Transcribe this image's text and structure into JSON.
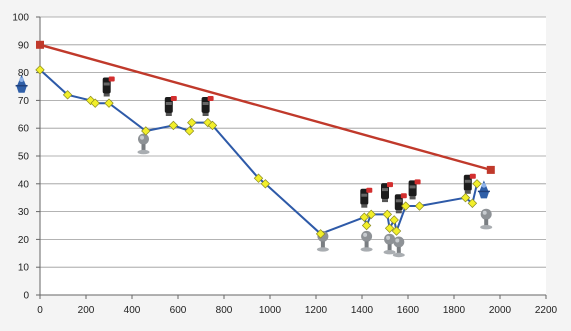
{
  "chart_data": {
    "type": "line",
    "title": "",
    "xlabel": "",
    "ylabel": "",
    "xlim": [
      0,
      2200
    ],
    "ylim": [
      0,
      100
    ],
    "x_ticks": [
      0,
      200,
      400,
      600,
      800,
      1000,
      1200,
      1400,
      1600,
      1800,
      2000,
      2200
    ],
    "y_ticks": [
      0,
      10,
      20,
      30,
      40,
      50,
      60,
      70,
      80,
      90,
      100
    ],
    "grid": true,
    "legend": "none",
    "series": [
      {
        "color": "#2e5aa8",
        "marker": "diamond",
        "marker_color": "#f2ef2a",
        "points": [
          [
            0,
            81
          ],
          [
            120,
            72
          ],
          [
            220,
            70
          ],
          [
            240,
            69
          ],
          [
            300,
            69
          ],
          [
            460,
            59
          ],
          [
            580,
            61
          ],
          [
            650,
            59
          ],
          [
            660,
            62
          ],
          [
            730,
            62
          ],
          [
            750,
            61
          ],
          [
            950,
            42
          ],
          [
            980,
            40
          ],
          [
            1220,
            22
          ],
          [
            1410,
            28
          ],
          [
            1420,
            25
          ],
          [
            1440,
            29
          ],
          [
            1510,
            29
          ],
          [
            1520,
            24
          ],
          [
            1540,
            27
          ],
          [
            1550,
            23
          ],
          [
            1590,
            32
          ],
          [
            1650,
            32
          ],
          [
            1850,
            35
          ],
          [
            1880,
            33
          ],
          [
            1900,
            40
          ]
        ]
      },
      {
        "color": "#c0392b",
        "marker": "square",
        "marker_color": "#c0392b",
        "points": [
          [
            0,
            90
          ],
          [
            1960,
            45
          ]
        ]
      }
    ],
    "image_markers": [
      {
        "icon": "blue-figure-icon",
        "x": -80,
        "y": 76
      },
      {
        "icon": "blue-figure-icon",
        "x": 1930,
        "y": 38
      },
      {
        "icon": "black-red-valve-icon",
        "x": 290,
        "y": 75
      },
      {
        "icon": "black-red-valve-icon",
        "x": 560,
        "y": 68
      },
      {
        "icon": "black-red-valve-icon",
        "x": 720,
        "y": 68
      },
      {
        "icon": "black-red-valve-icon",
        "x": 1410,
        "y": 35
      },
      {
        "icon": "black-red-valve-icon",
        "x": 1500,
        "y": 37
      },
      {
        "icon": "black-red-valve-icon",
        "x": 1560,
        "y": 33
      },
      {
        "icon": "black-red-valve-icon",
        "x": 1620,
        "y": 38
      },
      {
        "icon": "black-red-valve-icon",
        "x": 1860,
        "y": 40
      },
      {
        "icon": "gray-valve-icon",
        "x": 450,
        "y": 55
      },
      {
        "icon": "gray-valve-icon",
        "x": 1230,
        "y": 20
      },
      {
        "icon": "gray-valve-icon",
        "x": 1420,
        "y": 20
      },
      {
        "icon": "gray-valve-icon",
        "x": 1520,
        "y": 19
      },
      {
        "icon": "gray-valve-icon",
        "x": 1560,
        "y": 18
      },
      {
        "icon": "gray-valve-icon",
        "x": 1940,
        "y": 28
      }
    ]
  }
}
